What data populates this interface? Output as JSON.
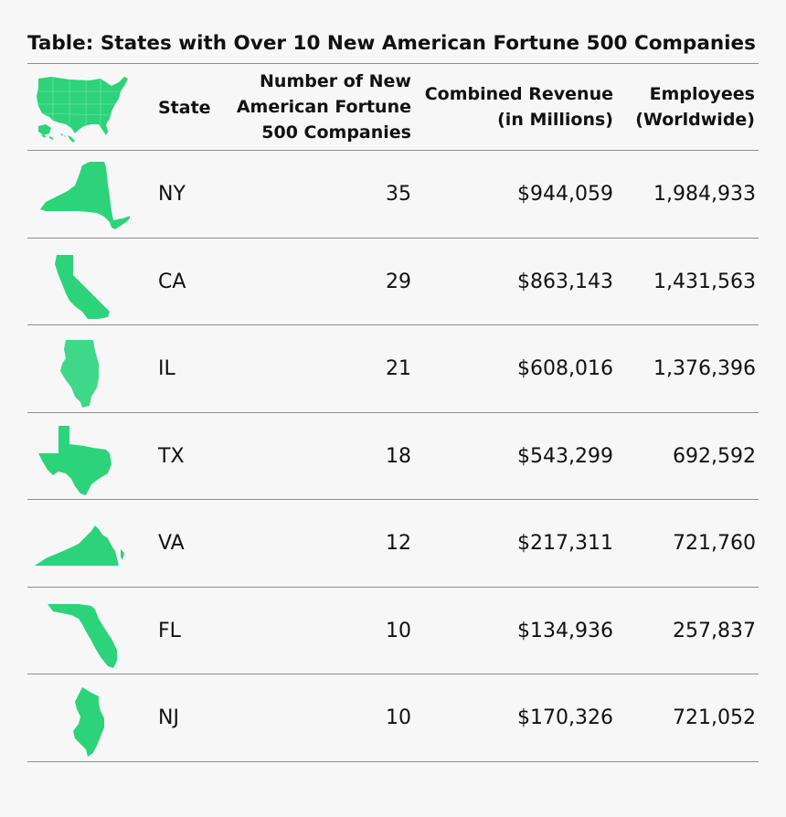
{
  "title": "Table: States with Over 10 New American Fortune 500 Companies",
  "header": {
    "map_icon": "usa-map-icon",
    "state": "State",
    "companies": [
      "Number of New",
      "American Fortune",
      "500 Companies"
    ],
    "revenue": [
      "Combined Revenue",
      "(in Millions)"
    ],
    "employees": [
      "Employees",
      "(Worldwide)"
    ]
  },
  "colors": {
    "shape": "#2dd37a",
    "shape_light": "#3ed888",
    "rule": "#8e8e8e",
    "background": "#f7f7f7"
  },
  "chart_data": {
    "type": "table",
    "title": "Table: States with Over 10 New American Fortune 500 Companies",
    "columns": [
      "State",
      "Number of New American Fortune 500 Companies",
      "Combined Revenue (in Millions)",
      "Employees (Worldwide)"
    ],
    "rows": [
      {
        "icon": "new-york-state-icon",
        "state": "NY",
        "companies": "35",
        "revenue": "$944,059",
        "employees": "1,984,933"
      },
      {
        "icon": "california-state-icon",
        "state": "CA",
        "companies": "29",
        "revenue": "$863,143",
        "employees": "1,431,563"
      },
      {
        "icon": "illinois-state-icon",
        "state": "IL",
        "companies": "21",
        "revenue": "$608,016",
        "employees": "1,376,396"
      },
      {
        "icon": "texas-state-icon",
        "state": "TX",
        "companies": "18",
        "revenue": "$543,299",
        "employees": "692,592"
      },
      {
        "icon": "virginia-state-icon",
        "state": "VA",
        "companies": "12",
        "revenue": "$217,311",
        "employees": "721,760"
      },
      {
        "icon": "florida-state-icon",
        "state": "FL",
        "companies": "10",
        "revenue": "$134,936",
        "employees": "257,837"
      },
      {
        "icon": "new-jersey-state-icon",
        "state": "NJ",
        "companies": "10",
        "revenue": "$170,326",
        "employees": "721,052"
      }
    ]
  }
}
